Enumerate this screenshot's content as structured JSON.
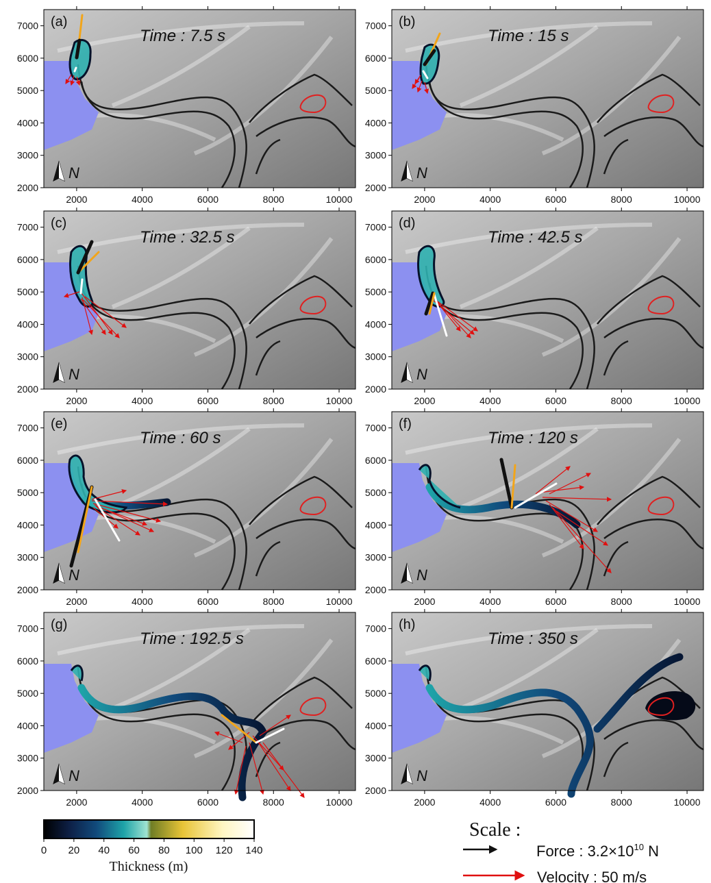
{
  "panels": [
    {
      "label": "(a)",
      "time": "Time : 7.5 s"
    },
    {
      "label": "(b)",
      "time": "Time : 15 s"
    },
    {
      "label": "(c)",
      "time": "Time : 32.5 s"
    },
    {
      "label": "(d)",
      "time": "Time : 42.5 s"
    },
    {
      "label": "(e)",
      "time": "Time : 60 s"
    },
    {
      "label": "(f)",
      "time": "Time : 120 s"
    },
    {
      "label": "(g)",
      "time": "Time : 192.5 s"
    },
    {
      "label": "(h)",
      "time": "Time : 350 s"
    }
  ],
  "axes": {
    "x_ticks": [
      "2000",
      "4000",
      "6000",
      "8000",
      "10000"
    ],
    "y_ticks": [
      "7000",
      "6000",
      "5000",
      "4000",
      "3000",
      "2000"
    ],
    "x_values": [
      2000,
      4000,
      6000,
      8000,
      10000
    ],
    "y_values": [
      7000,
      6000,
      5000,
      4000,
      3000,
      2000
    ],
    "xlim": [
      1000,
      10500
    ],
    "ylim": [
      2000,
      7500
    ]
  },
  "north_label": "N",
  "colorbar": {
    "title": "Thickness (m)",
    "ticks": [
      "0",
      "20",
      "40",
      "60",
      "80",
      "100",
      "120",
      "140"
    ],
    "colors": [
      "#000000",
      "#0d1f45",
      "#114a7c",
      "#1ea3a8",
      "#9fe3d2",
      "#6f7d25",
      "#e8c437",
      "#fff6c2",
      "#ffffff"
    ]
  },
  "scale": {
    "title": "Scale :",
    "force": "Force : 3.2×10",
    "force_exp": "10",
    "force_unit": " N",
    "velocity": "Velocity : 50 m/s"
  },
  "colors": {
    "terrain": "#9b9b9b",
    "water": "#8c90f0",
    "outline": "#1a1a1a",
    "target": "#e02020",
    "force": "#111111",
    "velocity": "#e01010",
    "orange_arrow": "#f2a51a",
    "white_arrow": "#ffffff"
  }
}
